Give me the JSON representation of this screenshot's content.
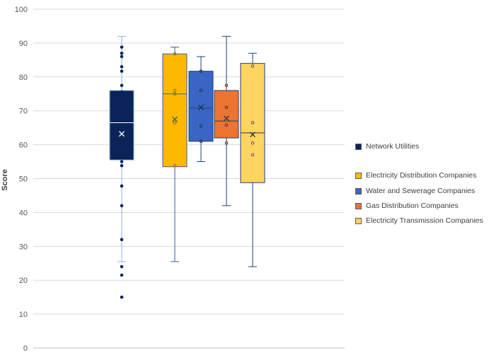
{
  "chart_data": {
    "type": "boxplot",
    "ylabel": "Score",
    "ylim": [
      0,
      100
    ],
    "yticks": [
      0,
      10,
      20,
      30,
      40,
      50,
      60,
      70,
      80,
      90,
      100
    ],
    "grid": true,
    "legend_position": "right",
    "series": [
      {
        "name": "Network Utilities",
        "color": "#0a2358",
        "min": 25.5,
        "q1": 55.5,
        "median": 66.5,
        "q3": 76,
        "max": 92,
        "mean": 63.2,
        "points": [
          88.8,
          87,
          86,
          83,
          81.7,
          77.5,
          75.6,
          73.8,
          70.8,
          67.5,
          65.8,
          63.2,
          60.5,
          57,
          55,
          53.8,
          47.8,
          42,
          32,
          24,
          21.5,
          15
        ],
        "outliers": [
          24,
          21.5,
          15
        ]
      },
      {
        "name": "Electricity Distribution Companies",
        "color": "#ffb800",
        "min": 25.5,
        "q1": 53.5,
        "median": 75,
        "q3": 86.8,
        "max": 88.8,
        "mean": 67.5,
        "points": [
          86.8,
          76,
          75,
          66.5,
          53.8
        ],
        "outliers": []
      },
      {
        "name": "Water and Sewerage Companies",
        "color": "#3a65c4",
        "min": 55,
        "q1": 61,
        "median": 70.8,
        "q3": 81.7,
        "max": 86,
        "mean": 71,
        "points": [
          81.7,
          76,
          65.5,
          61
        ],
        "outliers": []
      },
      {
        "name": "Gas Distribution Companies",
        "color": "#eb7430",
        "min": 42,
        "q1": 62,
        "median": 67,
        "q3": 76,
        "max": 92,
        "mean": 67.8,
        "points": [
          77.5,
          71,
          65.8,
          60.5
        ],
        "outliers": []
      },
      {
        "name": "Electricity Transmission Companies",
        "color": "#ffd461",
        "min": 24,
        "q1": 48.8,
        "median": 63.5,
        "q3": 84,
        "max": 87,
        "mean": 63,
        "points": [
          83.2,
          66.5,
          60.5,
          57
        ],
        "outliers": []
      }
    ]
  }
}
